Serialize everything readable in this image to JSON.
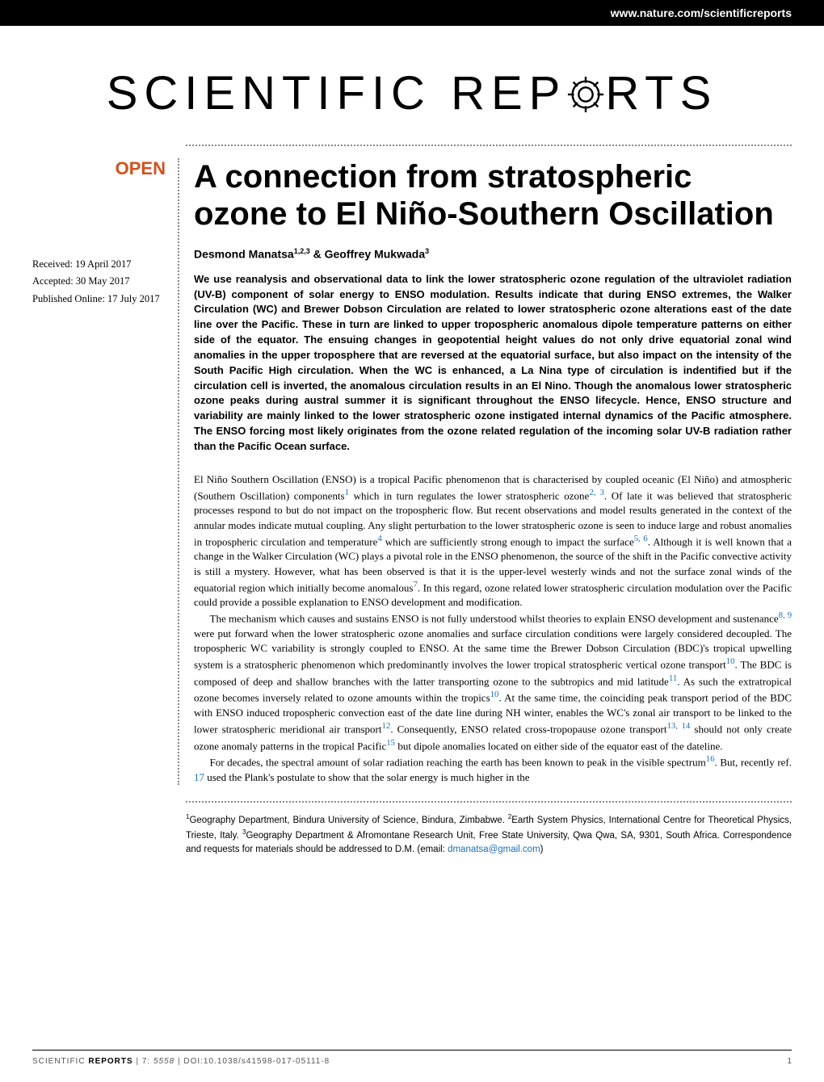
{
  "header": {
    "url": "www.nature.com/scientificreports"
  },
  "journal": {
    "logo_left": "SCIENTIFIC ",
    "logo_right_pre": "REP",
    "logo_right_post": "RTS"
  },
  "openBadge": "OPEN",
  "dates": {
    "received": "Received: 19 April 2017",
    "accepted": "Accepted: 30 May 2017",
    "published": "Published Online: 17 July 2017"
  },
  "article": {
    "title": "A connection from stratospheric ozone to El Niño-Southern Oscillation",
    "authors_html": "Desmond Manatsa<sup>1,2,3</sup> & Geoffrey Mukwada<sup>3</sup>",
    "abstract": "We use reanalysis and observational data to link the lower stratospheric ozone regulation of the ultraviolet radiation (UV-B) component of solar energy to ENSO modulation. Results indicate that during ENSO extremes, the Walker Circulation (WC) and Brewer Dobson Circulation are related to lower stratospheric ozone alterations east of the date line over the Pacific. These in turn are linked to upper tropospheric anomalous dipole temperature patterns on either side of the equator. The ensuing changes in geopotential height values do not only drive equatorial zonal wind anomalies in the upper troposphere that are reversed at the equatorial surface, but also impact on the intensity of the South Pacific High circulation. When the WC is enhanced, a La Nina type of circulation is indentified but if the circulation cell is inverted, the anomalous circulation results in an El Nino. Though the anomalous lower stratospheric ozone peaks during austral summer it is significant throughout the ENSO lifecycle. Hence, ENSO structure and variability are mainly linked to the lower stratospheric ozone instigated internal dynamics of the Pacific atmosphere. The ENSO forcing most likely originates from the ozone related regulation of the incoming solar UV-B radiation rather than the Pacific Ocean surface."
  },
  "body": {
    "p1_pre": "El Niño Southern Oscillation (ENSO) is a tropical Pacific phenomenon that is characterised by coupled oceanic (El Niño) and atmospheric (Southern Oscillation) components",
    "p1_ref1": "1",
    "p1_mid1": " which in turn regulates the lower stratospheric ozone",
    "p1_ref2": "2, 3",
    "p1_mid2": ". Of late it was believed that stratospheric processes respond to but do not impact on the tropospheric flow. But recent observations and model results generated in the context of the annular modes indicate mutual coupling. Any slight perturbation to the lower stratospheric ozone is seen to induce large and robust anomalies in tropospheric circulation and temperature",
    "p1_ref3": "4",
    "p1_mid3": " which are sufficiently strong enough to impact the surface",
    "p1_ref4": "5, 6",
    "p1_mid4": ". Although it is well known that a change in the Walker Circulation (WC) plays a pivotal role in the ENSO phenomenon, the source of the shift in the Pacific convective activity is still a mystery. However, what has been observed is that it is the upper-level westerly winds and not the surface zonal winds of the equatorial region which initially become anomalous",
    "p1_ref5": "7",
    "p1_end": ". In this regard, ozone related lower stratospheric circulation modulation over the Pacific could provide a possible explanation to ENSO development and modification.",
    "p2_pre": "The mechanism which causes and sustains ENSO is not fully understood whilst theories to explain ENSO development and sustenance",
    "p2_ref1": "8, 9",
    "p2_mid1": " were put forward when the lower stratospheric ozone anomalies and surface circulation conditions were largely considered decoupled. The tropospheric WC variability is strongly coupled to ENSO. At the same time the Brewer Dobson Circulation (BDC)'s tropical upwelling system is a stratospheric phenomenon which predominantly involves the lower tropical stratospheric vertical ozone transport",
    "p2_ref2": "10",
    "p2_mid2": ". The BDC is composed of deep and shallow branches with the latter transporting ozone to the subtropics and mid latitude",
    "p2_ref3": "11",
    "p2_mid3": ". As such the extratropical ozone becomes inversely related to ozone amounts within the tropics",
    "p2_ref4": "10",
    "p2_mid4": ". At the same time, the coinciding peak transport period of the BDC with ENSO induced tropospheric convection east of the date line during NH winter, enables the WC's zonal air transport to be linked to the lower stratospheric meridional air transport",
    "p2_ref5": "12",
    "p2_mid5": ". Consequently, ENSO related cross-tropopause ozone transport",
    "p2_ref6": "13, 14",
    "p2_mid6": " should not only create ozone anomaly patterns in the tropical Pacific",
    "p2_ref7": "15",
    "p2_end": " but dipole anomalies located on either side of the equator east of the dateline.",
    "p3_pre": "For decades, the spectral amount of solar radiation reaching the earth has been known to peak in the visible spectrum",
    "p3_ref1": "16",
    "p3_mid1": ". But, recently ref. ",
    "p3_ref2": "17",
    "p3_end": " used the Plank's postulate to show that the solar energy is much higher in the"
  },
  "affiliations_html": "<sup>1</sup>Geography Department, Bindura University of Science, Bindura, Zimbabwe. <sup>2</sup>Earth System Physics, International Centre for Theoretical Physics, Trieste, Italy. <sup>3</sup>Geography Department & Afromontane Research Unit, Free State University, Qwa Qwa, SA, 9301, South Africa. Correspondence and requests for materials should be addressed to D.M. (email: ",
  "email": "dmanatsa@gmail.com",
  "affiliations_close": ")",
  "footer": {
    "journal": "SCIENTIFIC ",
    "reports": "REPORTS",
    "citation": " | 7: ",
    "article_num": "5558",
    "doi": " | DOI:10.1038/s41598-017-05111-8",
    "page": "1"
  }
}
